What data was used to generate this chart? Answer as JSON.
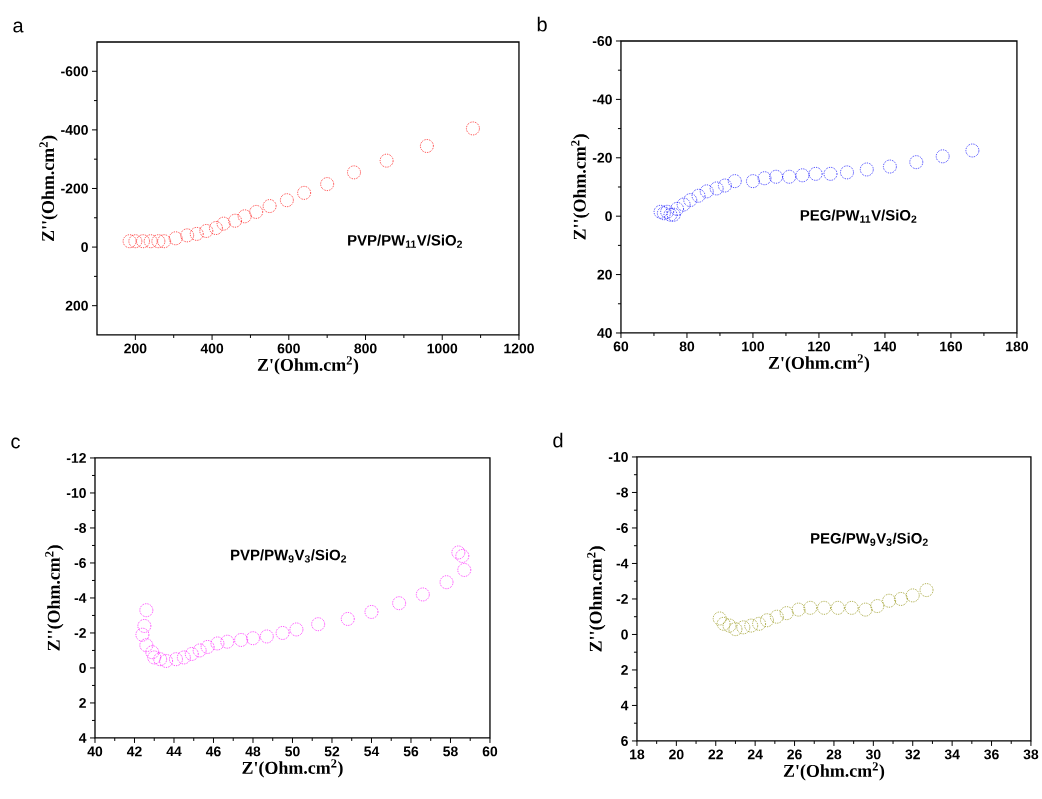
{
  "chart_data": [
    {
      "type": "scatter",
      "title": "a",
      "xlabel": "Z'(Ohm.cm$^{2}$)",
      "ylabel": "Z''(Ohm.cm$^{2}$)",
      "annotations": [
        "PVP/PW$_{11}$V/SiO$_{2}$"
      ],
      "marker": "circle",
      "xlim": [
        100,
        1200
      ],
      "ylim": [
        300,
        -700
      ],
      "xticks": [
        200,
        400,
        600,
        800,
        1000,
        1200
      ],
      "yticks": [
        -600,
        -400,
        -200,
        0,
        200
      ],
      "series": [
        {
          "color": "#ff0000",
          "x": [
            185,
            200,
            220,
            240,
            260,
            275,
            305,
            335,
            360,
            385,
            410,
            430,
            460,
            485,
            515,
            550,
            595,
            640,
            700,
            770,
            855,
            960,
            1080
          ],
          "values": [
            -20,
            -20,
            -20,
            -20,
            -20,
            -20,
            -30,
            -40,
            -45,
            -55,
            -65,
            -80,
            -90,
            -105,
            -120,
            -140,
            -160,
            -185,
            -215,
            -255,
            -295,
            -345,
            -405
          ]
        }
      ]
    },
    {
      "type": "scatter",
      "title": "b",
      "xlabel": "Z'(Ohm.cm$^{2}$)",
      "ylabel": "Z''(Ohm.cm$^{2}$)",
      "annotations": [
        "PEG/PW$_{11}$V/SiO$_{2}$"
      ],
      "marker": "circle",
      "xlim": [
        60,
        180
      ],
      "ylim": [
        40,
        -60
      ],
      "xticks": [
        60,
        80,
        100,
        120,
        140,
        160,
        180
      ],
      "yticks": [
        -60,
        -40,
        -20,
        0,
        20,
        40
      ],
      "series": [
        {
          "color": "#0000ff",
          "x": [
            72,
            73,
            74,
            75,
            76,
            77,
            79,
            81,
            83.5,
            86,
            89,
            91.5,
            94.5,
            100,
            103.5,
            107,
            111,
            115,
            119,
            123.5,
            128.5,
            134.5,
            141.5,
            149.5,
            157.5,
            166.5
          ],
          "values": [
            -1.5,
            -1,
            -1.5,
            -0.5,
            -0.5,
            -2.5,
            -4,
            -5.5,
            -7,
            -8.5,
            -9.5,
            -10.5,
            -12,
            -12,
            -13,
            -13.5,
            -13.5,
            -14,
            -14.5,
            -14.5,
            -15,
            -16,
            -17,
            -18.5,
            -20.5,
            -22.5
          ]
        }
      ]
    },
    {
      "type": "scatter",
      "title": "c",
      "xlabel": "Z'(Ohm.cm$^{2}$)",
      "ylabel": "Z''(Ohm.cm$^{2}$)",
      "annotations": [
        "PVP/PW$_{9}$V$_{3}$/SiO$_{2}$"
      ],
      "marker": "circle",
      "xlim": [
        40,
        60
      ],
      "ylim": [
        4,
        -12
      ],
      "xticks": [
        40,
        42,
        44,
        46,
        48,
        50,
        52,
        54,
        56,
        58,
        60
      ],
      "yticks": [
        -12,
        -10,
        -8,
        -6,
        -4,
        -2,
        0,
        2,
        4
      ],
      "series": [
        {
          "color": "#ff00ff",
          "x": [
            42.6,
            42.5,
            42.4,
            42.6,
            42.9,
            43.0,
            43.3,
            43.6,
            44.1,
            44.5,
            44.9,
            45.3,
            45.7,
            46.2,
            46.7,
            47.4,
            48.0,
            48.7,
            49.5,
            50.2,
            51.3,
            52.8,
            54.0,
            55.4,
            56.6,
            57.8,
            58.4,
            58.6,
            58.7
          ],
          "values": [
            -3.3,
            -2.4,
            -1.9,
            -1.3,
            -0.9,
            -0.6,
            -0.5,
            -0.4,
            -0.5,
            -0.6,
            -0.8,
            -1.0,
            -1.2,
            -1.4,
            -1.5,
            -1.6,
            -1.7,
            -1.8,
            -2.0,
            -2.2,
            -2.5,
            -2.8,
            -3.2,
            -3.7,
            -4.2,
            -4.9,
            -6.6,
            -6.4,
            -5.6
          ]
        }
      ]
    },
    {
      "type": "scatter",
      "title": "d",
      "xlabel": "Z'(Ohm.cm$^{2}$)",
      "ylabel": "Z''(Ohm.cm$^{2}$)",
      "annotations": [
        "PEG/PW$_{9}$V$_{3}$/SiO$_{2}$"
      ],
      "marker": "circle",
      "xlim": [
        18,
        38
      ],
      "ylim": [
        6,
        -10
      ],
      "xticks": [
        18,
        20,
        22,
        24,
        26,
        28,
        30,
        32,
        34,
        36,
        38
      ],
      "yticks": [
        -10,
        -8,
        -6,
        -4,
        -2,
        0,
        2,
        4,
        6
      ],
      "series": [
        {
          "color": "#8c8c00",
          "x": [
            22.2,
            22.4,
            22.7,
            23.0,
            23.4,
            23.8,
            24.2,
            24.6,
            25.1,
            25.6,
            26.2,
            26.8,
            27.5,
            28.2,
            28.9,
            29.6,
            30.2,
            30.8,
            31.4,
            32.0,
            32.7
          ],
          "values": [
            -0.9,
            -0.6,
            -0.5,
            -0.3,
            -0.4,
            -0.5,
            -0.6,
            -0.8,
            -1.0,
            -1.2,
            -1.4,
            -1.5,
            -1.5,
            -1.5,
            -1.5,
            -1.4,
            -1.6,
            -1.9,
            -2.0,
            -2.2,
            -2.5
          ]
        }
      ]
    }
  ]
}
